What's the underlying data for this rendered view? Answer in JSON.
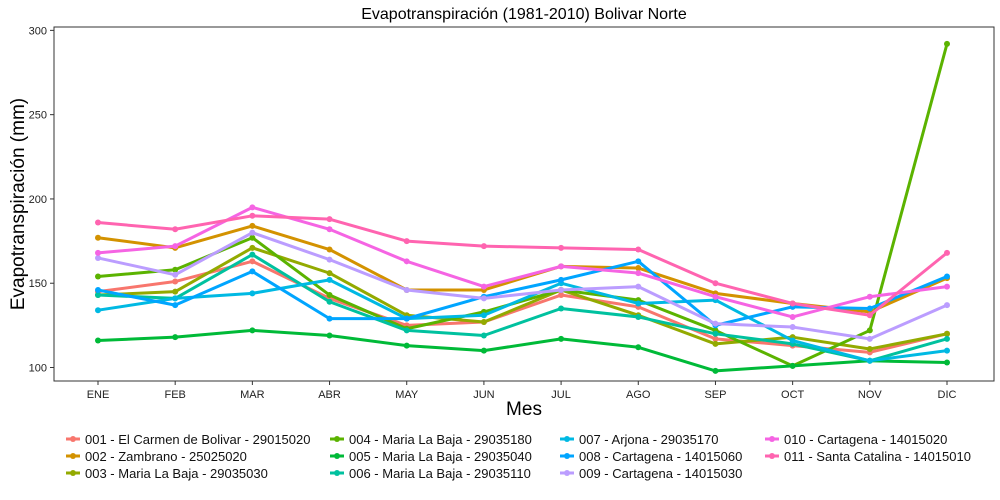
{
  "chart_data": {
    "type": "line",
    "title": "Evapotranspiración (1981-2010)  Bolivar Norte",
    "xlabel": "Mes",
    "ylabel": "Evapotranspiración  (mm)",
    "categories": [
      "ENE",
      "FEB",
      "MAR",
      "ABR",
      "MAY",
      "JUN",
      "JUL",
      "AGO",
      "SEP",
      "OCT",
      "NOV",
      "DIC"
    ],
    "ylim": [
      92,
      302
    ],
    "yticks": [
      100,
      150,
      200,
      250,
      300
    ],
    "grid": false,
    "legend_position": "bottom",
    "series": [
      {
        "name": "001 - El Carmen de Bolivar - 29015020",
        "color": "#F8766D",
        "values": [
          145,
          151,
          163,
          141,
          125,
          127,
          143,
          136,
          117,
          113,
          109,
          120
        ]
      },
      {
        "name": "002 - Zambrano - 25025020",
        "color": "#D39200",
        "values": [
          177,
          171,
          184,
          170,
          146,
          146,
          160,
          159,
          144,
          138,
          133,
          153
        ]
      },
      {
        "name": "003 - Maria La Baja - 29035030",
        "color": "#93AA00",
        "values": [
          143,
          145,
          171,
          156,
          131,
          127,
          146,
          131,
          114,
          118,
          111,
          120
        ]
      },
      {
        "name": "004 - Maria La Baja - 29035180",
        "color": "#5BB300",
        "values": [
          154,
          158,
          177,
          143,
          123,
          133,
          146,
          140,
          122,
          101,
          122,
          292
        ]
      },
      {
        "name": "005 - Maria La Baja - 29035040",
        "color": "#00BA38",
        "values": [
          116,
          118,
          122,
          119,
          113,
          110,
          117,
          112,
          98,
          101,
          104,
          103
        ]
      },
      {
        "name": "006 - Maria La Baja - 29035110",
        "color": "#00C19F",
        "values": [
          143,
          141,
          167,
          139,
          122,
          119,
          135,
          130,
          120,
          114,
          104,
          117
        ]
      },
      {
        "name": "007 - Arjona - 29035170",
        "color": "#00B9E3",
        "values": [
          134,
          141,
          144,
          152,
          129,
          131,
          150,
          138,
          140,
          116,
          104,
          110
        ]
      },
      {
        "name": "008 - Cartagena - 14015060",
        "color": "#00A5FF",
        "values": [
          146,
          137,
          157,
          129,
          129,
          142,
          152,
          163,
          125,
          136,
          135,
          154
        ]
      },
      {
        "name": "009 - Cartagena - 14015030",
        "color": "#BB9DFF",
        "values": [
          165,
          155,
          180,
          164,
          146,
          141,
          146,
          148,
          126,
          124,
          117,
          137
        ]
      },
      {
        "name": "010 - Cartagena - 14015020",
        "color": "#F564E3",
        "values": [
          168,
          172,
          195,
          182,
          163,
          148,
          160,
          156,
          142,
          130,
          142,
          148
        ]
      },
      {
        "name": "011 - Santa Catalina - 14015010",
        "color": "#FF64B0",
        "values": [
          186,
          182,
          190,
          188,
          175,
          172,
          171,
          170,
          150,
          138,
          131,
          168
        ]
      }
    ]
  }
}
